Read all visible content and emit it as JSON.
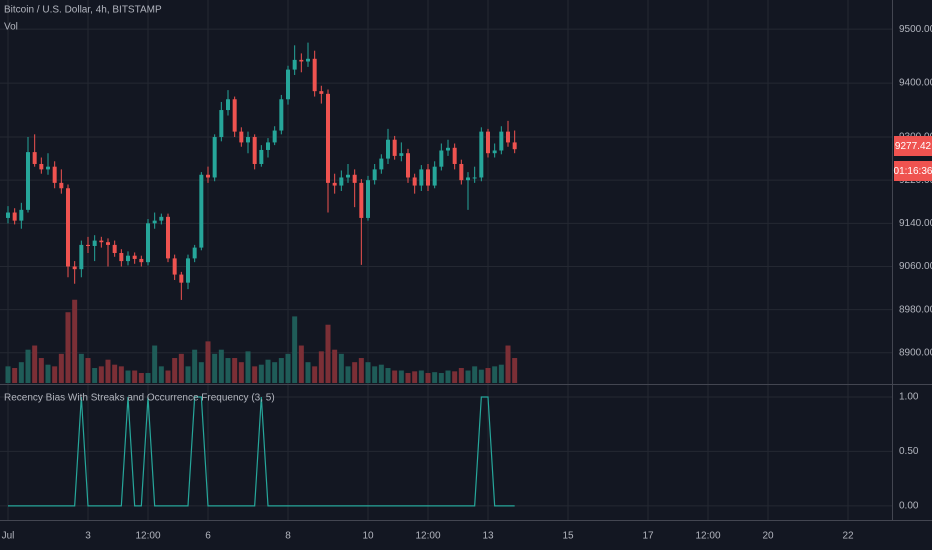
{
  "chart_data": [
    {
      "type": "candlestick",
      "title": "Bitcoin / U.S. Dollar, 4h, BITSTAMP",
      "last_price_label": "9277.42",
      "countdown": "01:16:36",
      "up_color": "#26a69a",
      "down_color": "#ef5350",
      "x": [
        0,
        4,
        8,
        12,
        16,
        20,
        24,
        28,
        32,
        36,
        40,
        44,
        48,
        52,
        56,
        60,
        64,
        68,
        72,
        76,
        80,
        84,
        88,
        92,
        96,
        100,
        104,
        108,
        112,
        116,
        120,
        124,
        128,
        132,
        136,
        140,
        144,
        148,
        152,
        156,
        160,
        164,
        168,
        172,
        176,
        180,
        184,
        188,
        192,
        196,
        200,
        204,
        208,
        212,
        216,
        220,
        224,
        228,
        232,
        236,
        240,
        244,
        248,
        252,
        256,
        260,
        264,
        268,
        272,
        276,
        280,
        284,
        288,
        292,
        296,
        300,
        304
      ],
      "open": [
        9150,
        9160,
        9145,
        9165,
        9272,
        9250,
        9240,
        9245,
        9215,
        9205,
        9060,
        9055,
        9100,
        9098,
        9108,
        9105,
        9100,
        9085,
        9070,
        9080,
        9074,
        9068,
        9140,
        9145,
        9152,
        9075,
        9045,
        9030,
        9075,
        9095,
        9230,
        9225,
        9300,
        9350,
        9370,
        9310,
        9290,
        9300,
        9250,
        9276,
        9290,
        9312,
        9370,
        9425,
        9443,
        9440,
        9445,
        9385,
        9380,
        9215,
        9210,
        9225,
        9230,
        9215,
        9150,
        9220,
        9240,
        9260,
        9295,
        9265,
        9270,
        9225,
        9210,
        9240,
        9210,
        9245,
        9275,
        9280,
        9250,
        9220,
        9225,
        9225,
        9310,
        9270,
        9275,
        9310,
        9290
      ],
      "high": [
        9172,
        9168,
        9178,
        9300,
        9305,
        9262,
        9270,
        9255,
        9240,
        9212,
        9070,
        9108,
        9115,
        9118,
        9115,
        9112,
        9108,
        9092,
        9088,
        9086,
        9080,
        9148,
        9160,
        9158,
        9158,
        9082,
        9050,
        9082,
        9100,
        9235,
        9245,
        9305,
        9365,
        9387,
        9375,
        9318,
        9310,
        9305,
        9285,
        9298,
        9320,
        9378,
        9432,
        9470,
        9455,
        9475,
        9460,
        9395,
        9388,
        9232,
        9238,
        9250,
        9240,
        9222,
        9228,
        9250,
        9268,
        9315,
        9302,
        9290,
        9278,
        9232,
        9248,
        9250,
        9255,
        9288,
        9295,
        9288,
        9258,
        9235,
        9245,
        9318,
        9315,
        9288,
        9320,
        9330,
        9312
      ],
      "low": [
        9140,
        9138,
        9130,
        9160,
        9245,
        9232,
        9230,
        9205,
        9195,
        9040,
        9028,
        9040,
        9085,
        9070,
        9095,
        9060,
        9078,
        9060,
        9062,
        9065,
        9060,
        9062,
        9130,
        9138,
        9068,
        9035,
        8998,
        9018,
        9068,
        9090,
        9215,
        9218,
        9292,
        9340,
        9300,
        9282,
        9270,
        9240,
        9245,
        9262,
        9285,
        9305,
        9360,
        9415,
        9420,
        9430,
        9375,
        9362,
        9160,
        9195,
        9200,
        9215,
        9170,
        9063,
        9145,
        9212,
        9232,
        9250,
        9258,
        9255,
        9215,
        9195,
        9200,
        9200,
        9205,
        9238,
        9265,
        9240,
        9212,
        9165,
        9215,
        9218,
        9262,
        9262,
        9268,
        9282,
        9270
      ],
      "close": [
        9160,
        9145,
        9165,
        9272,
        9250,
        9240,
        9245,
        9215,
        9205,
        9060,
        9055,
        9100,
        9098,
        9108,
        9105,
        9100,
        9085,
        9070,
        9080,
        9074,
        9068,
        9140,
        9145,
        9152,
        9075,
        9045,
        9030,
        9075,
        9095,
        9230,
        9225,
        9300,
        9350,
        9370,
        9310,
        9290,
        9300,
        9250,
        9276,
        9290,
        9312,
        9370,
        9425,
        9443,
        9440,
        9445,
        9385,
        9380,
        9215,
        9210,
        9225,
        9230,
        9215,
        9150,
        9220,
        9240,
        9260,
        9295,
        9265,
        9270,
        9225,
        9210,
        9240,
        9210,
        9245,
        9275,
        9280,
        9250,
        9220,
        9225,
        9225,
        9310,
        9270,
        9275,
        9310,
        9290,
        9277.42
      ],
      "xlim": [
        -4.8,
        530.4
      ],
      "ylim": [
        8844,
        9554
      ],
      "yticks": [
        {
          "value": 8900,
          "label": "8900.00"
        },
        {
          "value": 8980,
          "label": "8980.00"
        },
        {
          "value": 9060,
          "label": "9060.00"
        },
        {
          "value": 9140,
          "label": "9140.00"
        },
        {
          "value": 9220,
          "label": "9220.00"
        },
        {
          "value": 9300,
          "label": "9300.00"
        },
        {
          "value": 9400,
          "label": "9400.00"
        },
        {
          "value": 9500,
          "label": "9500.00"
        }
      ],
      "grid": true
    },
    {
      "type": "bar",
      "title": "Vol",
      "up_color": "#1f5c58",
      "down_color": "#7b2f36",
      "values": [
        20,
        18,
        25,
        40,
        45,
        30,
        22,
        20,
        35,
        85,
        100,
        35,
        30,
        18,
        20,
        28,
        22,
        20,
        15,
        15,
        12,
        12,
        45,
        20,
        15,
        30,
        35,
        20,
        40,
        25,
        50,
        35,
        40,
        30,
        30,
        25,
        38,
        20,
        22,
        28,
        25,
        30,
        35,
        80,
        45,
        25,
        20,
        38,
        70,
        40,
        35,
        20,
        25,
        30,
        25,
        20,
        22,
        18,
        15,
        15,
        12,
        14,
        15,
        12,
        13,
        12,
        15,
        14,
        18,
        15,
        20,
        16,
        18,
        20,
        22,
        45,
        30
      ],
      "ylim": [
        0,
        460
      ]
    },
    {
      "type": "line",
      "title": "Recency Bias With Streaks and Occurrence Frequency (3, 5)",
      "color": "#26a69a",
      "values": [
        0,
        0,
        0,
        0,
        0,
        0,
        0,
        0,
        0,
        0,
        0,
        1,
        0,
        0,
        0,
        0,
        0,
        0,
        1,
        0,
        0,
        1,
        0,
        0,
        0,
        0,
        0,
        0,
        1,
        1,
        0,
        0,
        0,
        0,
        0,
        0,
        0,
        0,
        1,
        0,
        0,
        0,
        0,
        0,
        0,
        0,
        0,
        0,
        0,
        0,
        0,
        0,
        0,
        0,
        0,
        0,
        0,
        0,
        0,
        0,
        0,
        0,
        0,
        0,
        0,
        0,
        0,
        0,
        0,
        0,
        0,
        1,
        1,
        0,
        0,
        0,
        0
      ],
      "xlim": [
        -4.8,
        530.4
      ],
      "ylim": [
        -0.13,
        1.11
      ],
      "yticks": [
        {
          "value": 0,
          "label": "0.00"
        },
        {
          "value": 0.5,
          "label": "0.50"
        },
        {
          "value": 1,
          "label": "1.00"
        }
      ],
      "xticks": [
        {
          "value": 0,
          "label": "Jul"
        },
        {
          "value": 48,
          "label": "3"
        },
        {
          "value": 84,
          "label": "12:00"
        },
        {
          "value": 120,
          "label": "6"
        },
        {
          "value": 168,
          "label": "8"
        },
        {
          "value": 216,
          "label": "10"
        },
        {
          "value": 252,
          "label": "12:00"
        },
        {
          "value": 288,
          "label": "13"
        },
        {
          "value": 336,
          "label": "15"
        },
        {
          "value": 384,
          "label": "17"
        },
        {
          "value": 420,
          "label": "12:00"
        },
        {
          "value": 456,
          "label": "20"
        },
        {
          "value": 504,
          "label": "22"
        }
      ],
      "grid": true
    }
  ]
}
